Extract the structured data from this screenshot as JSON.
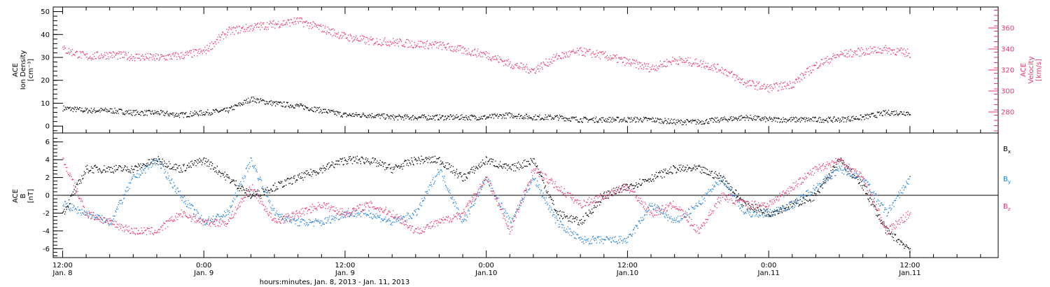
{
  "chart_data": [
    {
      "type": "scatter",
      "panel": "top",
      "ylabel_lines": [
        "ACE",
        "Ion Density",
        "[cm⁻³]"
      ],
      "y2label_lines": [
        "ACE",
        "Velocity",
        "[km/s]"
      ],
      "ylim": [
        -3,
        52
      ],
      "y2lim": [
        260,
        380
      ],
      "yticks": [
        0,
        10,
        20,
        30,
        40,
        50
      ],
      "y2ticks": [
        280,
        300,
        320,
        340,
        360
      ],
      "colors": {
        "density": "#000000",
        "velocity": "#e8386a"
      },
      "density_hours": [
        0,
        2,
        4,
        6,
        8,
        10,
        12,
        14,
        16,
        18,
        20,
        22,
        24,
        26,
        28,
        30,
        32,
        34,
        36,
        38,
        40,
        42,
        44,
        46,
        48,
        50,
        52,
        54,
        56,
        58,
        60,
        62,
        64,
        66,
        68,
        70,
        72
      ],
      "density_values": [
        8,
        7,
        7,
        6,
        6,
        5,
        6,
        7,
        12,
        10,
        9,
        7,
        5,
        5,
        4,
        4,
        4,
        4,
        4,
        5,
        4,
        4,
        3,
        3,
        3,
        3,
        2,
        2,
        3,
        4,
        3,
        3,
        3,
        3,
        4,
        6,
        6
      ],
      "velocity_hours": [
        0,
        2,
        4,
        6,
        8,
        10,
        12,
        14,
        16,
        18,
        20,
        22,
        24,
        26,
        28,
        30,
        32,
        34,
        36,
        38,
        40,
        42,
        44,
        46,
        48,
        50,
        52,
        54,
        56,
        58,
        60,
        62,
        64,
        66,
        68,
        70,
        72
      ],
      "velocity_values": [
        340,
        333,
        335,
        333,
        332,
        334,
        338,
        357,
        361,
        364,
        367,
        360,
        352,
        348,
        347,
        345,
        344,
        339,
        335,
        326,
        320,
        333,
        338,
        334,
        328,
        322,
        330,
        327,
        321,
        308,
        303,
        307,
        325,
        335,
        338,
        340,
        336
      ]
    },
    {
      "type": "scatter",
      "panel": "bottom",
      "ylabel_lines": [
        "ACE",
        "B",
        "[nT]"
      ],
      "ylim": [
        -7,
        7
      ],
      "yticks": [
        -6,
        -4,
        -2,
        0,
        2,
        4,
        6
      ],
      "series": [
        {
          "name": "Bx",
          "label_base": "B",
          "label_sub": "x",
          "color": "#000000",
          "hours": [
            0,
            2,
            4,
            6,
            8,
            10,
            12,
            14,
            16,
            18,
            20,
            22,
            24,
            26,
            28,
            30,
            32,
            34,
            36,
            38,
            40,
            42,
            44,
            46,
            48,
            50,
            52,
            54,
            56,
            58,
            60,
            62,
            64,
            66,
            68,
            70,
            72
          ],
          "values": [
            -2,
            3,
            3,
            3,
            4,
            3,
            4,
            2,
            0,
            1,
            2,
            3,
            4,
            4,
            3,
            4,
            4,
            2,
            4,
            3,
            4,
            -2,
            -3,
            0,
            1,
            2,
            3,
            3,
            2,
            -1,
            -2,
            -1,
            0,
            4,
            1,
            -4,
            -6
          ]
        },
        {
          "name": "By",
          "label_base": "B",
          "label_sub": "y",
          "color": "#1f7fd8",
          "hours": [
            0,
            2,
            4,
            6,
            8,
            10,
            12,
            14,
            16,
            18,
            20,
            22,
            24,
            26,
            28,
            30,
            32,
            34,
            36,
            38,
            40,
            42,
            44,
            46,
            48,
            50,
            52,
            54,
            56,
            58,
            60,
            62,
            64,
            66,
            68,
            70,
            72
          ],
          "values": [
            -1,
            -2,
            -3,
            2,
            4,
            0,
            -3,
            -2,
            4,
            -2,
            -3,
            -3,
            -2,
            -2,
            -3,
            -2,
            3,
            -3,
            2,
            -3,
            2,
            -3,
            -5,
            -5,
            -5,
            -1,
            -3,
            -1,
            2,
            -2,
            -2,
            -1,
            1,
            3,
            2,
            -2,
            2
          ]
        },
        {
          "name": "Bz",
          "label_base": "B",
          "label_sub": "z",
          "color": "#e8386a",
          "hours": [
            0,
            2,
            4,
            6,
            8,
            10,
            12,
            14,
            16,
            18,
            20,
            22,
            24,
            26,
            28,
            30,
            32,
            34,
            36,
            38,
            40,
            42,
            44,
            46,
            48,
            50,
            52,
            54,
            56,
            58,
            60,
            62,
            64,
            66,
            68,
            70,
            72
          ],
          "values": [
            4,
            -2,
            -3,
            -4,
            -4,
            -2,
            -3,
            -3,
            1,
            -3,
            -2,
            -1,
            -2,
            -1,
            -2,
            -4,
            -3,
            -2,
            2,
            -4,
            3,
            1,
            -1,
            0,
            1,
            -2,
            -1,
            -4,
            0,
            -1,
            -1,
            1,
            3,
            4,
            2,
            -4,
            -2
          ]
        }
      ]
    }
  ],
  "x_axis": {
    "xlabel": "hours:minutes, Jan.  8, 2013 - Jan. 11, 2013",
    "ticks": [
      {
        "hour": 0,
        "time": "12:00",
        "date": "Jan. 8"
      },
      {
        "hour": 12,
        "time": "0:00",
        "date": "Jan. 9"
      },
      {
        "hour": 24,
        "time": "12:00",
        "date": "Jan. 9"
      },
      {
        "hour": 36,
        "time": "0:00",
        "date": "Jan.10"
      },
      {
        "hour": 48,
        "time": "12:00",
        "date": "Jan.10"
      },
      {
        "hour": 60,
        "time": "0:00",
        "date": "Jan.11"
      },
      {
        "hour": 72,
        "time": "12:00",
        "date": "Jan.11"
      }
    ],
    "xlim": [
      -0.8,
      79.5
    ]
  }
}
